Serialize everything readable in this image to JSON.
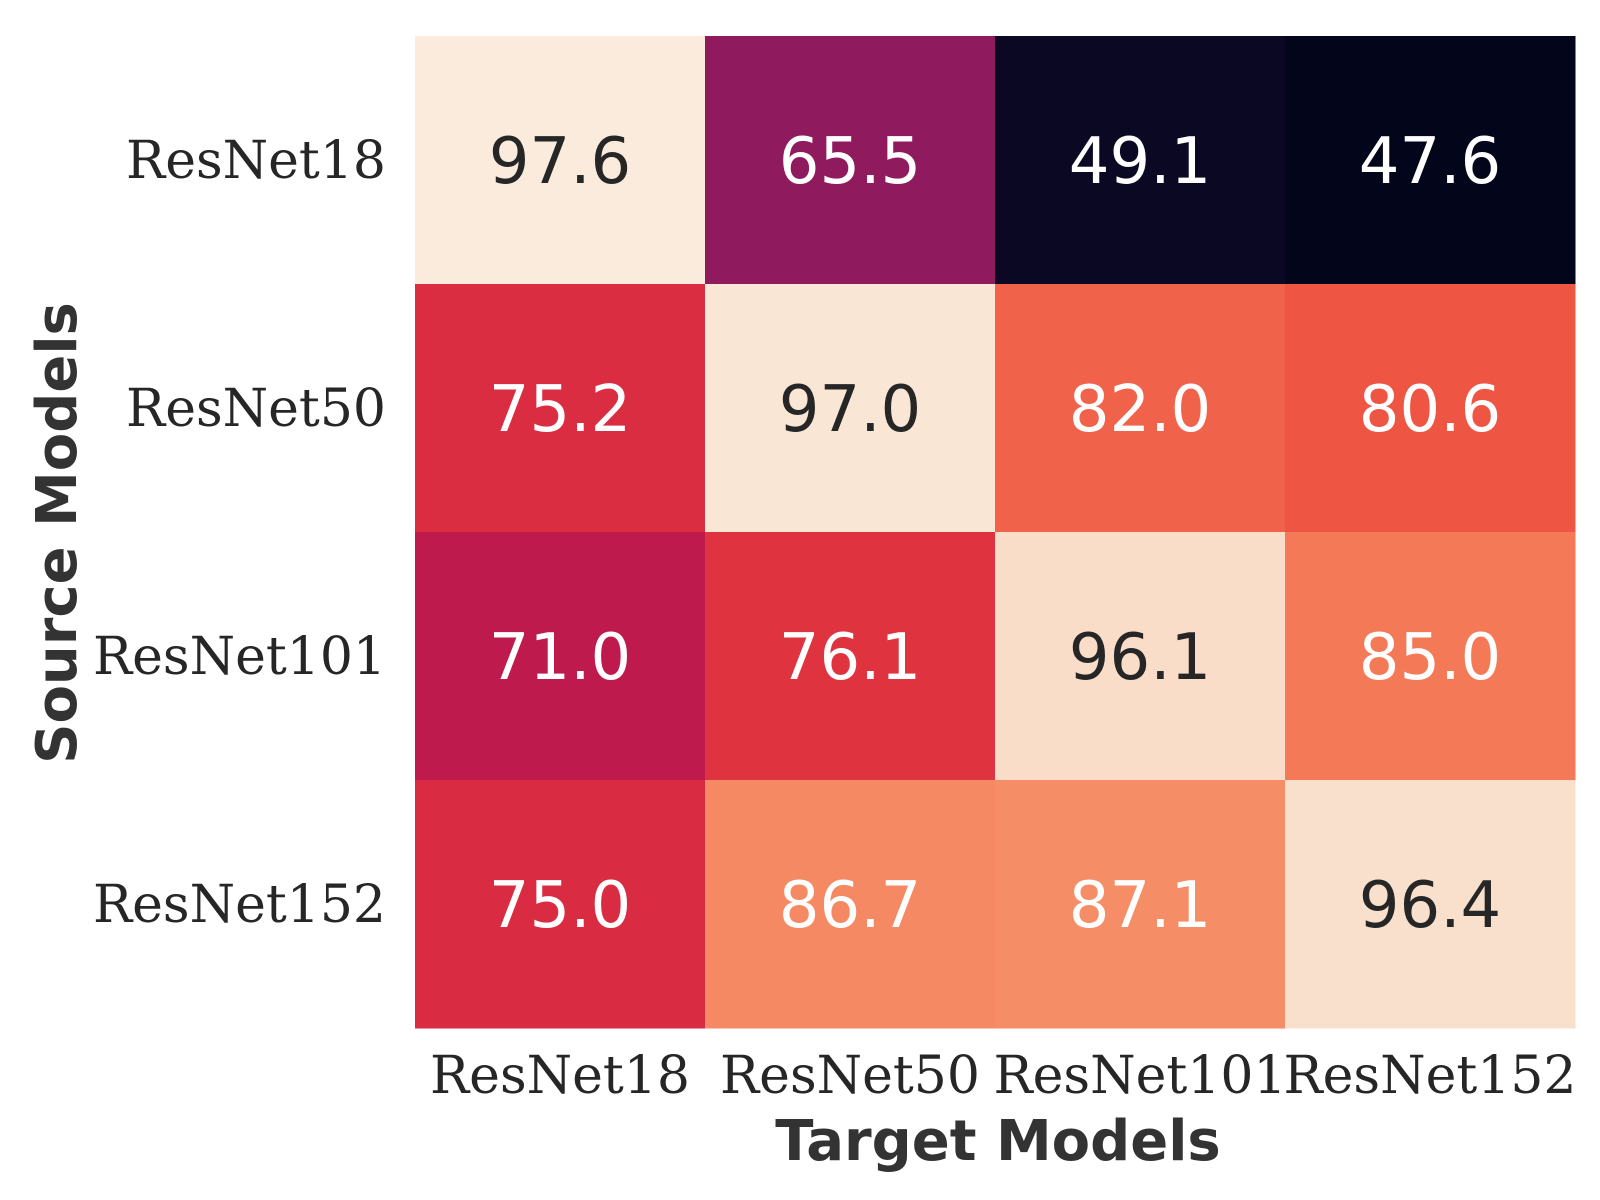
{
  "chart_data": {
    "type": "heatmap",
    "title": "",
    "xlabel": "Target Models",
    "ylabel": "Source Models",
    "x_categories": [
      "ResNet18",
      "ResNet50",
      "ResNet101",
      "ResNet152"
    ],
    "y_categories": [
      "ResNet18",
      "ResNet50",
      "ResNet101",
      "ResNet152"
    ],
    "values": [
      [
        97.6,
        65.5,
        49.1,
        47.6
      ],
      [
        75.2,
        97.0,
        82.0,
        80.6
      ],
      [
        71.0,
        76.1,
        96.1,
        85.0
      ],
      [
        75.0,
        86.7,
        87.1,
        96.4
      ]
    ],
    "value_labels": [
      [
        "97.6",
        "65.5",
        "49.1",
        "47.6"
      ],
      [
        "75.2",
        "97.0",
        "82.0",
        "80.6"
      ],
      [
        "71.0",
        "76.1",
        "96.1",
        "85.0"
      ],
      [
        "75.0",
        "86.7",
        "87.1",
        "96.4"
      ]
    ],
    "colormap": "rocket",
    "colorbar": false,
    "grid": false
  }
}
